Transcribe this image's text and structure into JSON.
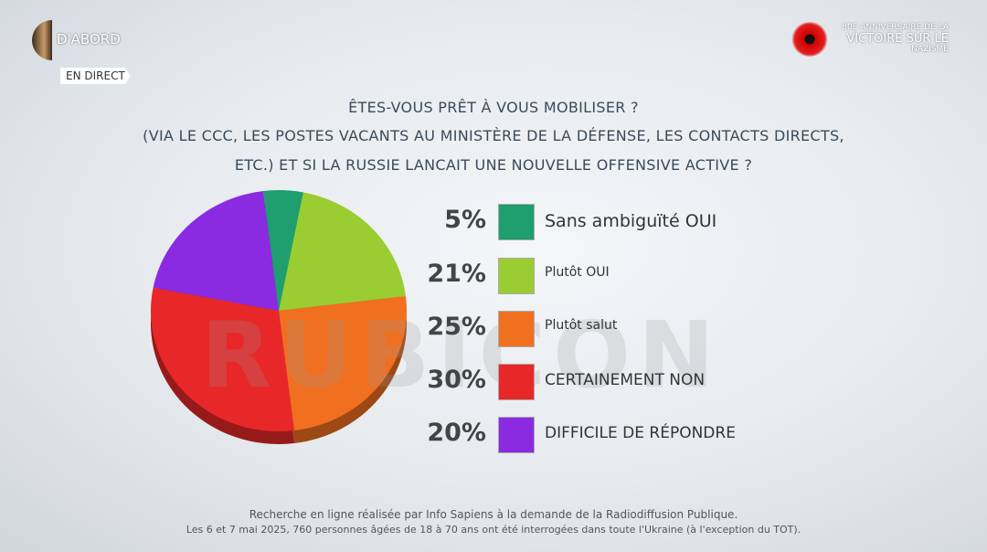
{
  "header": {
    "brand": "D'ABORD",
    "live": "EN DIRECT",
    "anniversary": [
      "80E ANNIVERSAIRE DE LA",
      "VICTOIRE SUR LE",
      "NAZISME"
    ]
  },
  "title": [
    "ÊTES-VOUS PRÊT À VOUS MOBILISER ?",
    "(VIA LE CCC, LES POSTES VACANTS AU MINISTÈRE DE LA DÉFENSE, LES CONTACTS DIRECTS,",
    "ETC.) ET SI LA RUSSIE LANCAIT UNE NOUVELLE OFFENSIVE ACTIVE ?"
  ],
  "watermark": "RUBICON",
  "chart_data": {
    "type": "pie",
    "title": "ÊTES-VOUS PRÊT À VOUS MOBILISER ?",
    "slices": [
      {
        "label": "Sans ambiguïté OUI",
        "value": 5,
        "pct": "5%",
        "color": "#1f9e6e"
      },
      {
        "label": "Plutôt OUI",
        "value": 21,
        "pct": "21%",
        "color": "#9acd32"
      },
      {
        "label": "Plutôt salut",
        "value": 25,
        "pct": "25%",
        "color": "#f07020"
      },
      {
        "label": "CERTAINEMENT NON",
        "value": 30,
        "pct": "30%",
        "color": "#e82828"
      },
      {
        "label": "DIFFICILE DE RÉPONDRE",
        "value": 20,
        "pct": "20%",
        "color": "#8a2be2"
      }
    ]
  },
  "footer": [
    "Recherche en ligne réalisée par Info Sapiens à la demande de la Radiodiffusion Publique.",
    "Les 6 et 7 mai 2025, 760 personnes âgées de 18 à 70 ans ont été interrogées dans toute l'Ukraine (à l'exception du TOT)."
  ]
}
